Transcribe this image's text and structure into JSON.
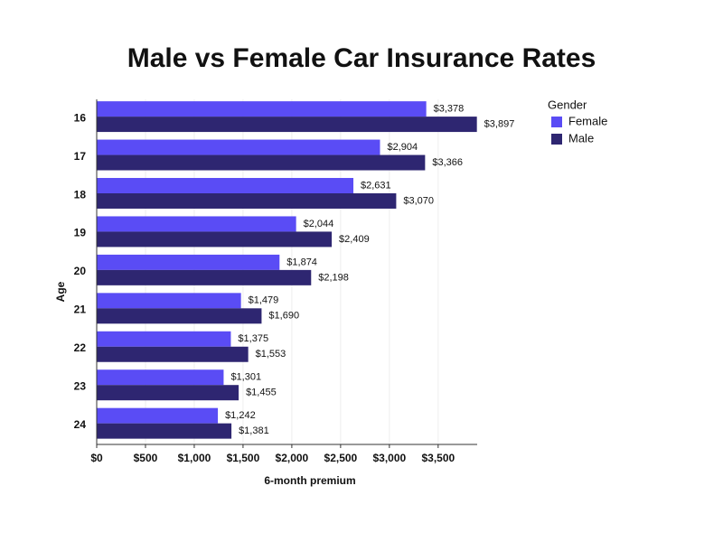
{
  "chart_data": {
    "type": "hbar",
    "title": "Male vs Female Car Insurance Rates",
    "x_label": "6-month premium",
    "y_label": "Age",
    "legend_title": "Gender",
    "legend_position": "top-right",
    "categories": [
      "16",
      "17",
      "18",
      "19",
      "20",
      "21",
      "22",
      "23",
      "24"
    ],
    "series": [
      {
        "name": "Female",
        "color": "#5a4cf5",
        "values": [
          3378,
          2904,
          2631,
          2044,
          1874,
          1479,
          1375,
          1301,
          1242
        ],
        "value_labels": [
          "$3,378",
          "$2,904",
          "$2,631",
          "$2,044",
          "$1,874",
          "$1,479",
          "$1,375",
          "$1,301",
          "$1,242"
        ]
      },
      {
        "name": "Male",
        "color": "#2e2671",
        "values": [
          3897,
          3366,
          3070,
          2409,
          2198,
          1690,
          1553,
          1455,
          1381
        ],
        "value_labels": [
          "$3,897",
          "$3,366",
          "$3,070",
          "$2,409",
          "$2,198",
          "$1,690",
          "$1,553",
          "$1,455",
          "$1,381"
        ]
      }
    ],
    "xlim": [
      0,
      3900
    ],
    "xticks": [
      {
        "value": 0,
        "label": "$0"
      },
      {
        "value": 500,
        "label": "$500"
      },
      {
        "value": 1000,
        "label": "$1,000"
      },
      {
        "value": 1500,
        "label": "$1,500"
      },
      {
        "value": 2000,
        "label": "$2,000"
      },
      {
        "value": 2500,
        "label": "$2,500"
      },
      {
        "value": 3000,
        "label": "$3,000"
      },
      {
        "value": 3500,
        "label": "$3,500"
      }
    ],
    "grid": true
  }
}
